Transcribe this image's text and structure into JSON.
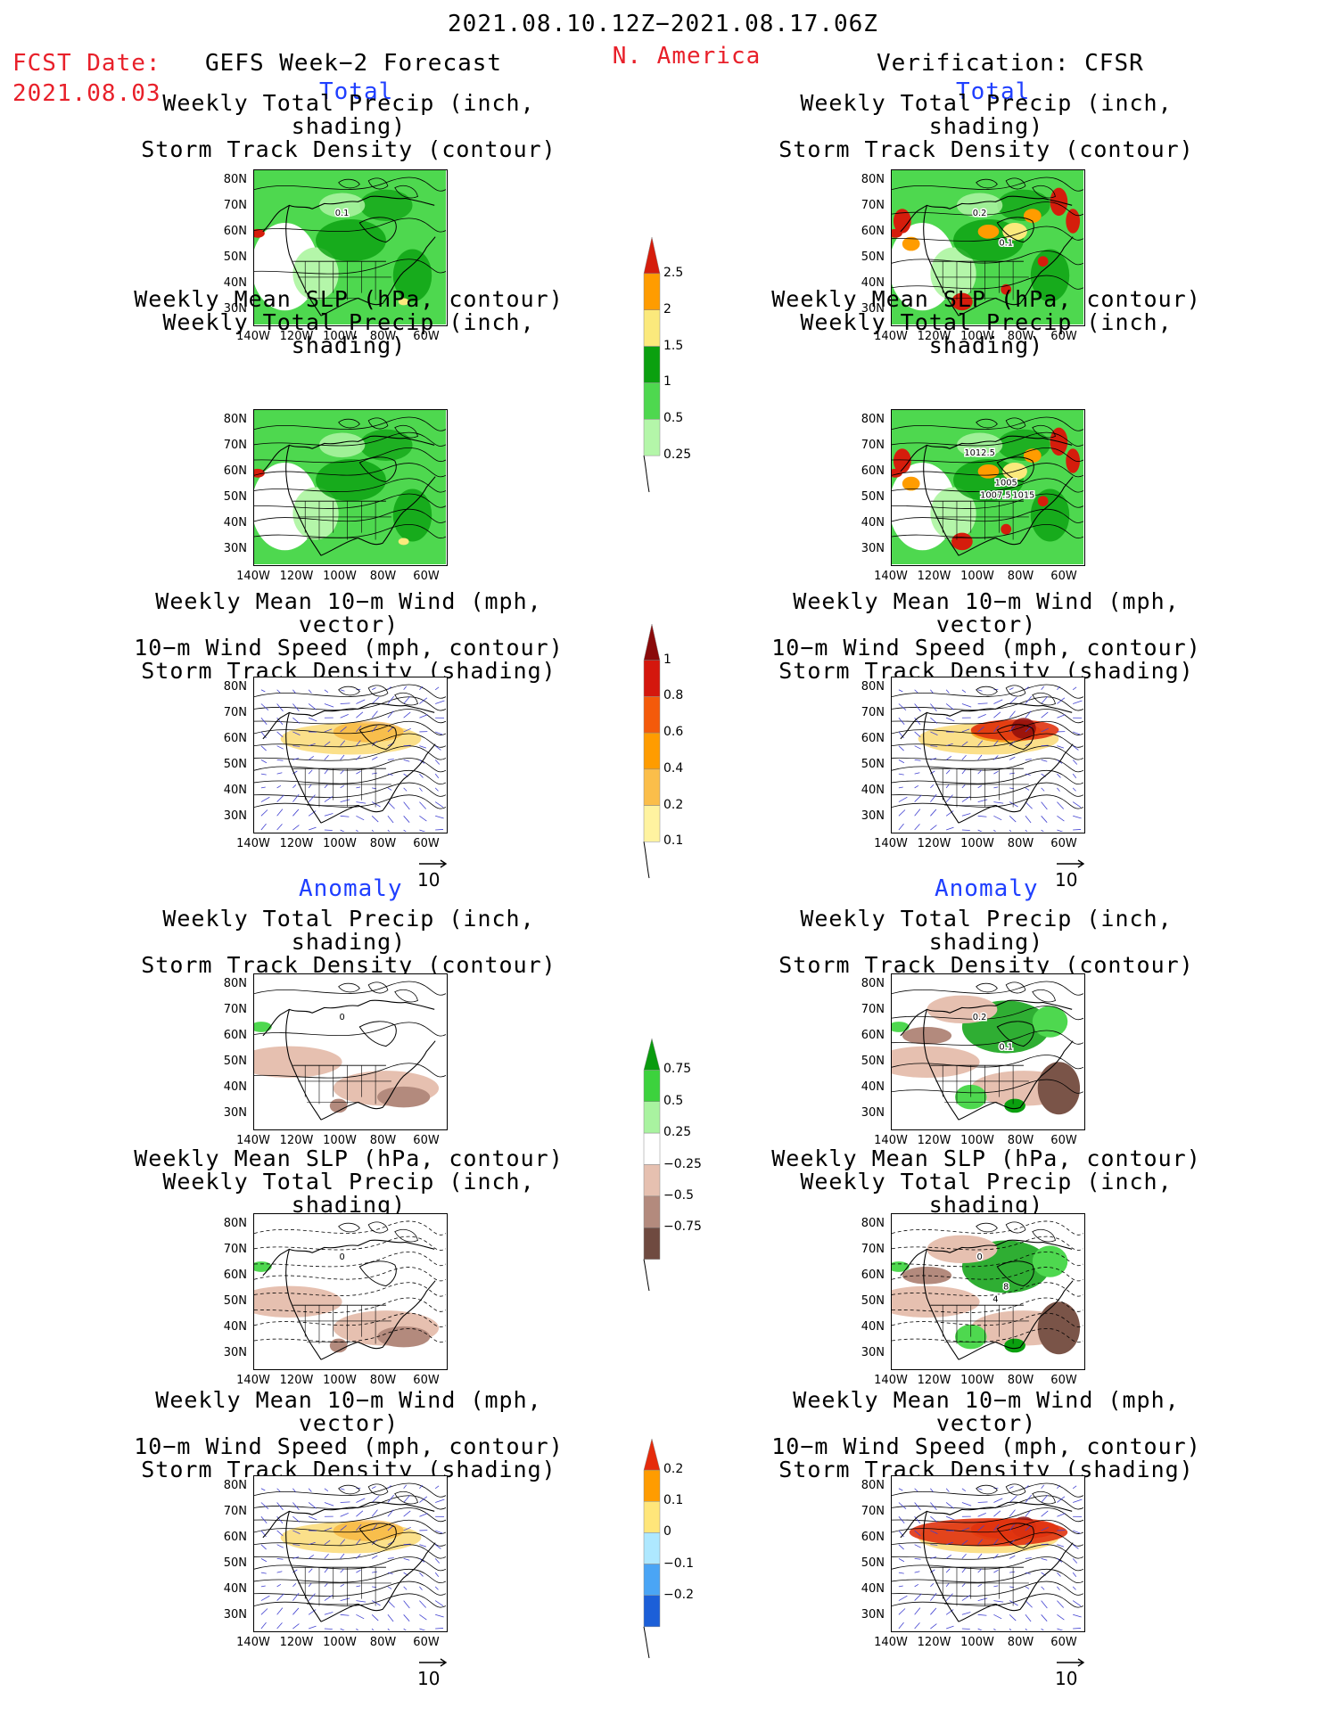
{
  "header": {
    "date_range": "2021.08.10.12Z−2021.08.17.06Z",
    "fcst_label": "FCST Date:",
    "fcst_date": "2021.08.03",
    "model": "GEFS Week−2 Forecast",
    "region": "N. America",
    "verification": "Verification: CFSR"
  },
  "sections": {
    "total": "Total",
    "anomaly": "Anomaly"
  },
  "titles": {
    "precip_storm": [
      "Weekly Total Precip (inch, shading)",
      "Storm Track Density (contour)"
    ],
    "slp_precip": [
      "Weekly Mean SLP (hPa, contour)",
      "Weekly Total Precip (inch, shading)"
    ],
    "wind_storm": [
      "Weekly Mean 10−m Wind (mph, vector)",
      "10−m Wind Speed (mph, contour)",
      "Storm Track Density (shading)"
    ]
  },
  "axes": {
    "lat_ticks": [
      "80N",
      "70N",
      "60N",
      "50N",
      "40N",
      "30N"
    ],
    "lon_ticks": [
      "140W",
      "120W",
      "100W",
      "80W",
      "60W"
    ],
    "vector_ref": "10"
  },
  "contour_labels": {
    "fcst_total_precip": [
      "0.1"
    ],
    "cfsr_total_precip": [
      "0.2",
      "0.1"
    ],
    "cfsr_total_slp": [
      "1012.5",
      "1005",
      "1007.5",
      "1015"
    ],
    "fcst_anom_precip": [
      "0"
    ],
    "cfsr_anom_precip": [
      "0.2",
      "0.1"
    ],
    "fcst_anom_slp": [
      "0"
    ],
    "cfsr_anom_slp": [
      "0",
      "8",
      "4"
    ]
  },
  "colorbars": {
    "precip_total": {
      "labels": [
        "2.5",
        "2",
        "1.5",
        "1",
        "0.5",
        "0.25"
      ],
      "colors": [
        "#d51d0c",
        "#ff9c00",
        "#fbe97c",
        "#0aa00f",
        "#4ed84f",
        "#b4f6a9"
      ]
    },
    "storm_total": {
      "labels": [
        "1",
        "0.8",
        "0.6",
        "0.4",
        "0.2",
        "0.1"
      ],
      "colors": [
        "#8a0a0a",
        "#d4170d",
        "#f45a0a",
        "#ff9c00",
        "#fbbe4a",
        "#fff3a0"
      ]
    },
    "precip_anom": {
      "labels": [
        "0.75",
        "0.5",
        "0.25",
        "−0.25",
        "−0.5",
        "−0.75"
      ],
      "colors": [
        "#0a9b0f",
        "#3cd23d",
        "#a9f3a0",
        "#ffffff",
        "#e6c0b0",
        "#b38a7d",
        "#6f4a40"
      ]
    },
    "storm_anom": {
      "labels": [
        "0.2",
        "0.1",
        "0",
        "−0.1",
        "−0.2"
      ],
      "colors": [
        "#e52b0c",
        "#ff9c00",
        "#ffe67a",
        "#aee8ff",
        "#4aa5f5",
        "#1c5fd8"
      ]
    }
  },
  "colors": {
    "precip_light": "#b4f6a9",
    "precip_mid": "#4ed84f",
    "precip_dark": "#0aa00f",
    "precip_yellow": "#fbe97c",
    "precip_orange": "#ff9c00",
    "precip_red": "#d51d0c",
    "dry_light": "#e6c0b0",
    "dry_mid": "#b38a7d",
    "dry_dark": "#7a5448",
    "storm_yellow": "#fbe08a",
    "storm_orange": "#f7a623",
    "storm_red": "#e0330f",
    "wind_vector": "#4040d0"
  }
}
